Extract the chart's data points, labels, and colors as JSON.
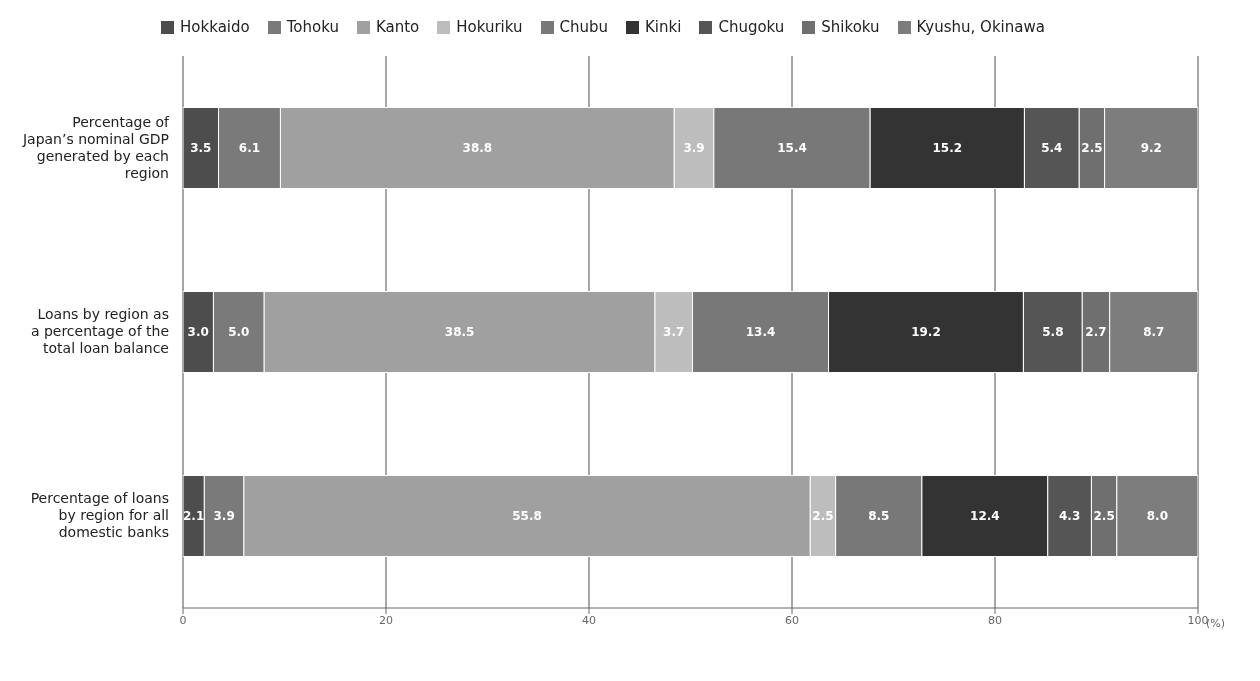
{
  "chart_data": {
    "type": "bar",
    "orientation": "horizontal",
    "stacked": true,
    "grid": "x",
    "legend": "top",
    "xlabel": "(%)",
    "categories": [
      "Percentage of Japan’s nominal GDP generated by each region",
      "Loans by region as a percentage of the total loan balance",
      "Percentage of loans by region for all domestic banks"
    ],
    "xlim": [
      0,
      100
    ],
    "xticks": [
      0,
      20,
      40,
      60,
      80,
      100
    ],
    "series": [
      {
        "name": "Hokkaido",
        "color": "#4d4d4d",
        "values": [
          3.5,
          3.0,
          2.1
        ],
        "value_labels": [
          "3.5",
          "3.0",
          "2.1"
        ]
      },
      {
        "name": "Tohoku",
        "color": "#7a7a7a",
        "values": [
          6.1,
          5.0,
          3.9
        ],
        "value_labels": [
          "6.1",
          "5.0",
          "3.9"
        ]
      },
      {
        "name": "Kanto",
        "color": "#a0a0a0",
        "values": [
          38.8,
          38.5,
          55.8
        ],
        "value_labels": [
          "38.8",
          "38.5",
          "55.8"
        ]
      },
      {
        "name": "Hokuriku",
        "color": "#bdbdbd",
        "values": [
          3.9,
          3.7,
          2.5
        ],
        "value_labels": [
          "3.9",
          "3.7",
          "2.5"
        ]
      },
      {
        "name": "Chubu",
        "color": "#787878",
        "values": [
          15.4,
          13.4,
          8.5
        ],
        "value_labels": [
          "15.4",
          "13.4",
          "8.5"
        ]
      },
      {
        "name": "Kinki",
        "color": "#333333",
        "values": [
          15.2,
          19.2,
          12.4
        ],
        "value_labels": [
          "15.2",
          "19.2",
          "12.4"
        ]
      },
      {
        "name": "Chugoku",
        "color": "#555555",
        "values": [
          5.4,
          5.8,
          4.3
        ],
        "value_labels": [
          "5.4",
          "5.8",
          "4.3"
        ]
      },
      {
        "name": "Shikoku",
        "color": "#6f6f6f",
        "values": [
          2.5,
          2.7,
          2.5
        ],
        "value_labels": [
          "2.5",
          "2.7",
          "2.5"
        ]
      },
      {
        "name": "Kyushu, Okinawa",
        "color": "#7d7d7d",
        "values": [
          9.2,
          8.7,
          8.0
        ],
        "value_labels": [
          "9.2",
          "8.7",
          "8.0"
        ]
      }
    ]
  }
}
